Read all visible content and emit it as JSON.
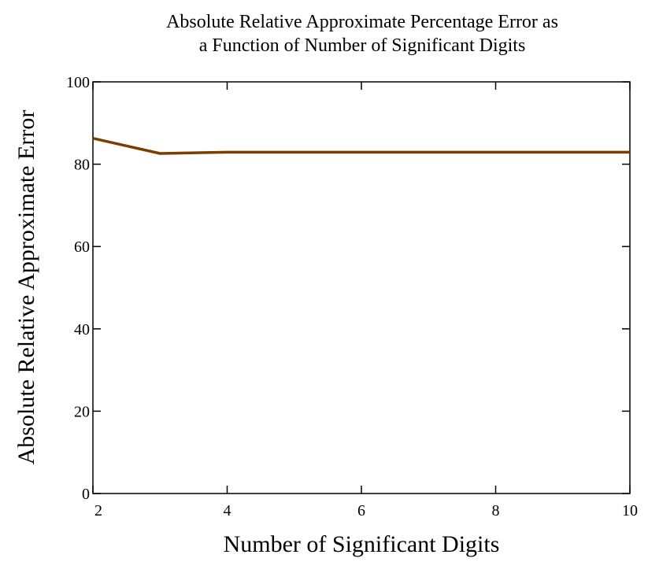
{
  "chart_data": {
    "type": "line",
    "title_lines": [
      "Absolute Relative Approximate Percentage Error as",
      "a Function of Number of Significant Digits"
    ],
    "xlabel": "Number of Significant Digits",
    "ylabel": "Absolute Relative Approximate Error",
    "xlim": [
      2,
      10
    ],
    "ylim": [
      0,
      100
    ],
    "x_ticks": [
      2,
      4,
      6,
      8,
      10
    ],
    "y_ticks": [
      0,
      20,
      40,
      60,
      80,
      100
    ],
    "grid": false,
    "series": [
      {
        "x": [
          2,
          3,
          4,
          5,
          6,
          7,
          8,
          9,
          10
        ],
        "y": [
          86.3,
          82.6,
          82.9,
          82.9,
          82.9,
          82.9,
          82.9,
          82.9,
          82.9
        ],
        "color": "#7a3e00"
      }
    ]
  }
}
